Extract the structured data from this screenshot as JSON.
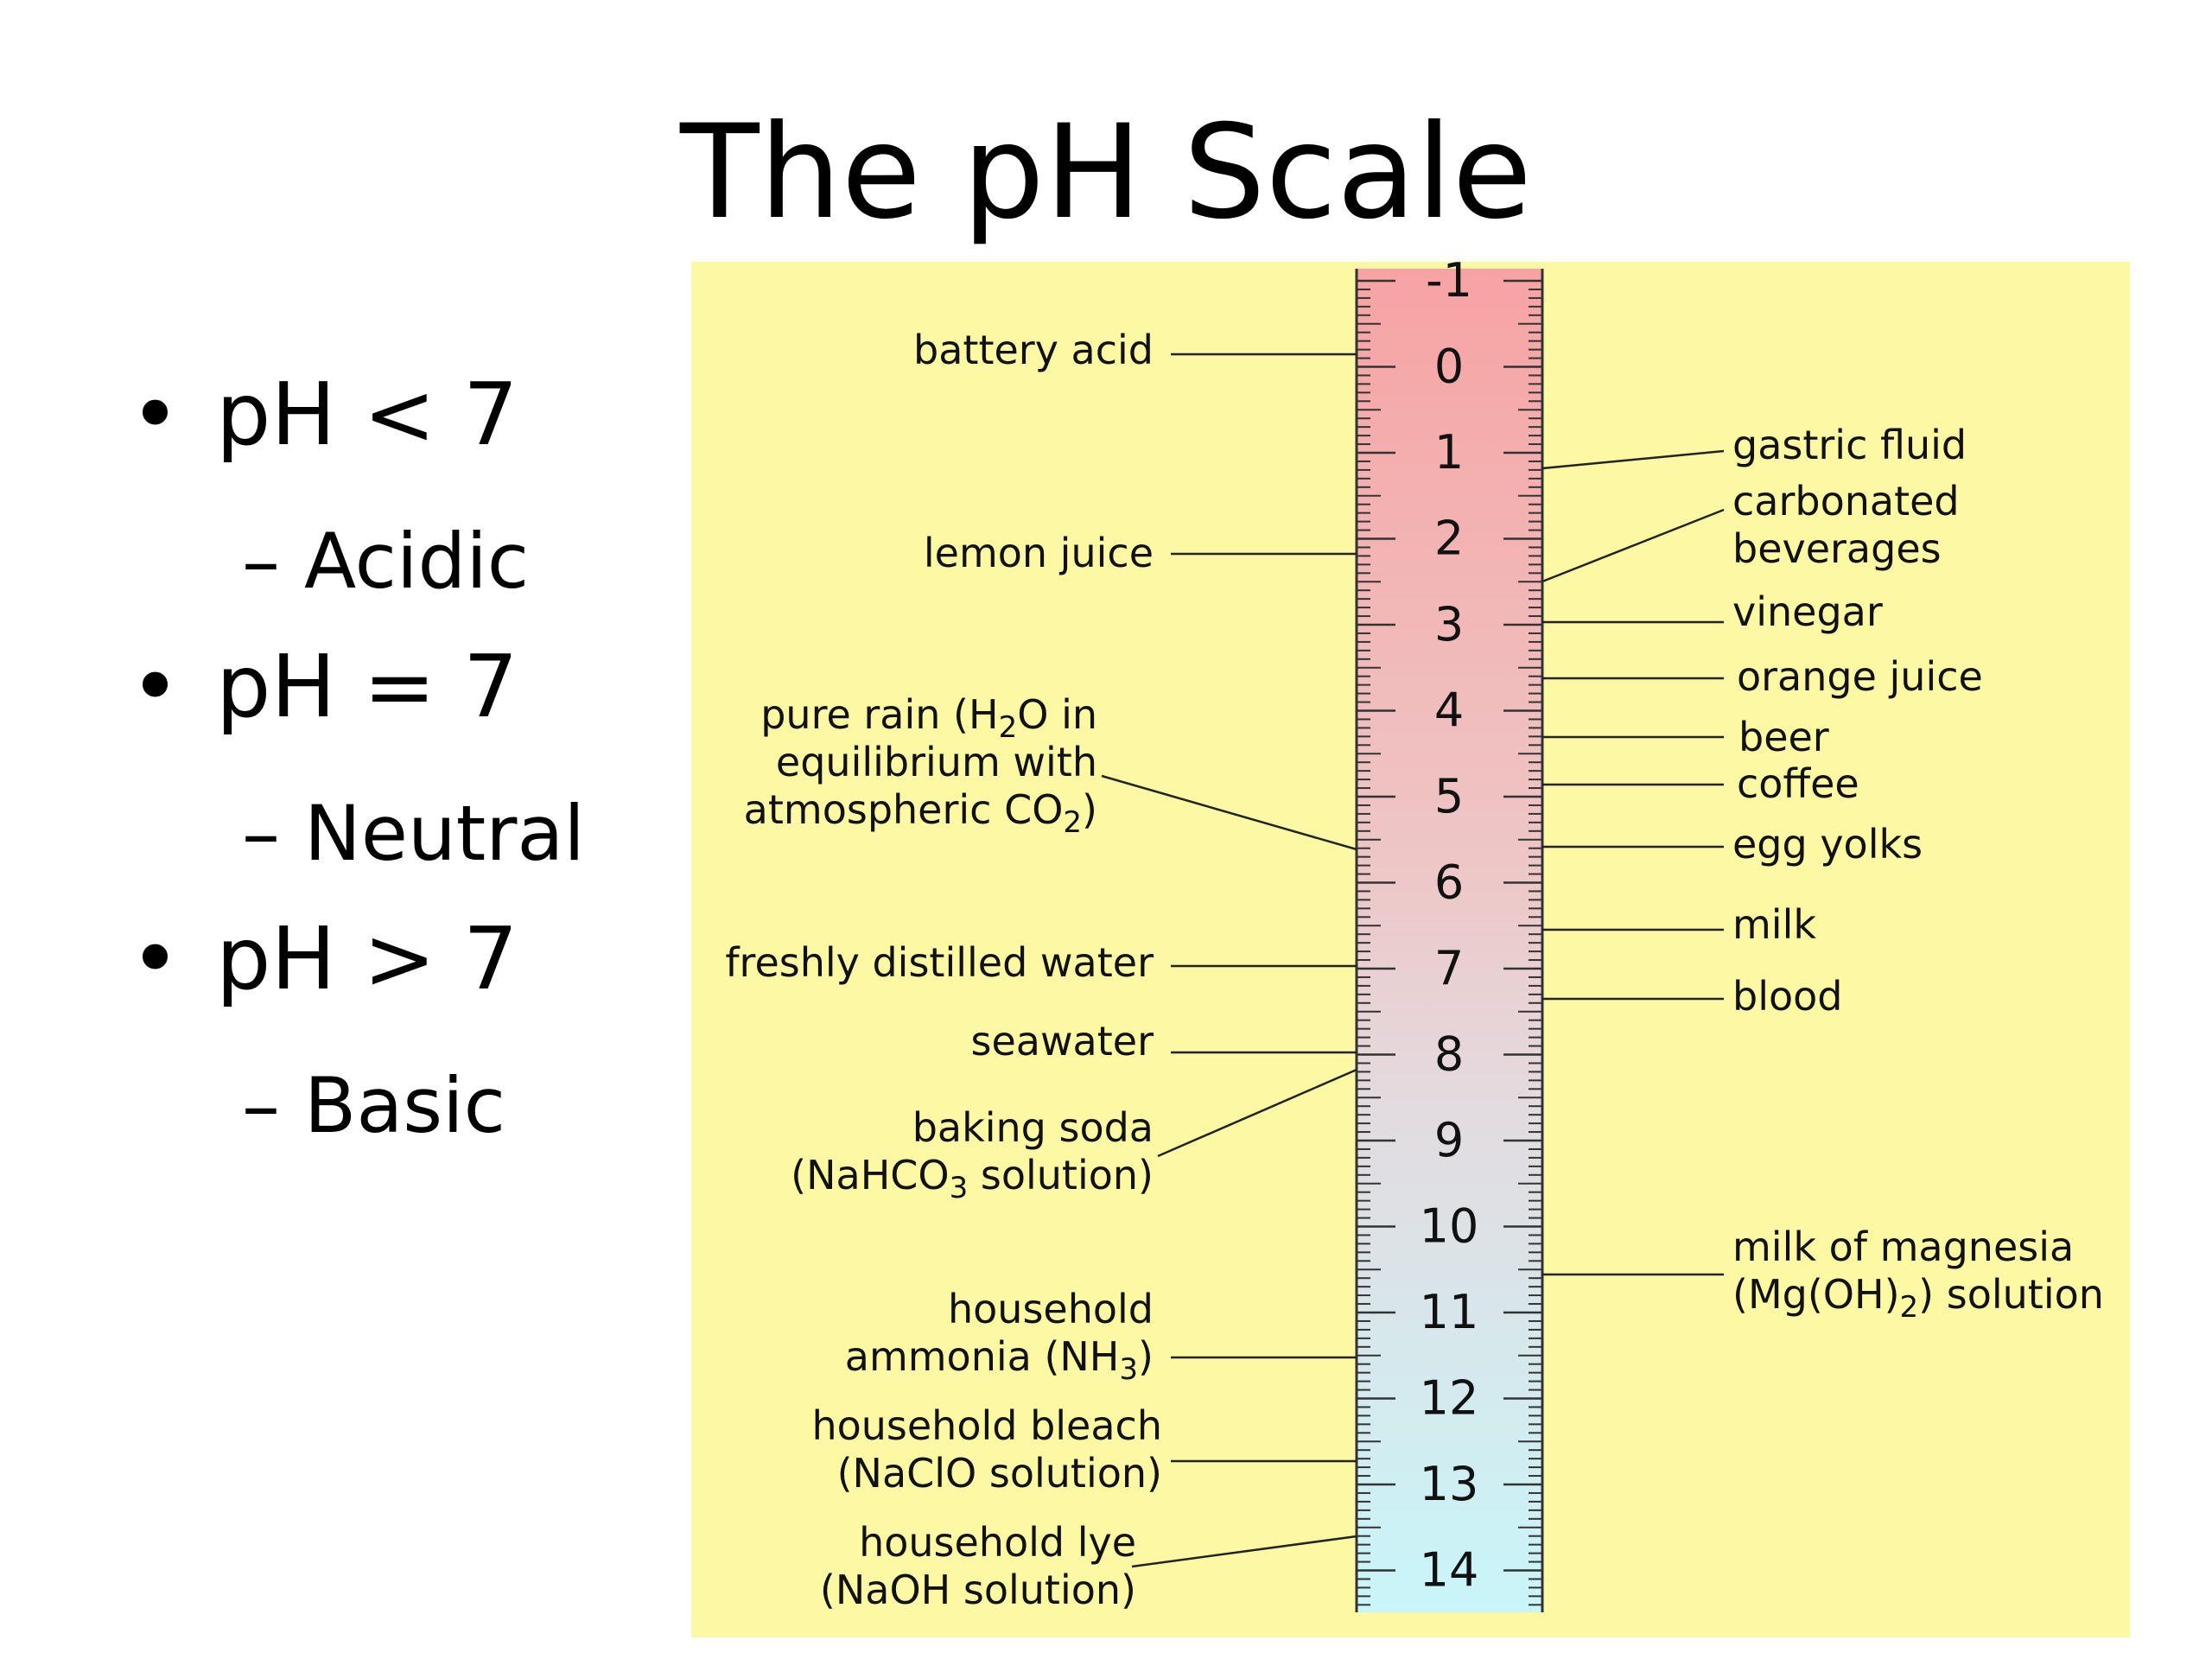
{
  "title": "The pH Scale",
  "bullets": [
    {
      "text": "pH < 7",
      "sub": "Acidic"
    },
    {
      "text": "pH = 7",
      "sub": "Neutral"
    },
    {
      "text": "pH > 7",
      "sub": "Basic"
    }
  ],
  "colors": {
    "panel_bg": "#fcf8a4",
    "acid_top": "#f7a3a3",
    "neutral_mid": "#e3dbdf",
    "base_bottom": "#c8f6fa"
  },
  "scale": {
    "tick_labels": [
      "-1",
      "0",
      "1",
      "2",
      "3",
      "4",
      "5",
      "6",
      "7",
      "8",
      "9",
      "10",
      "11",
      "12",
      "13",
      "14"
    ]
  },
  "left_labels": {
    "battery_acid": "battery acid",
    "lemon_juice": "lemon juice",
    "pure_rain_1a": "pure rain (H",
    "pure_rain_1sub": "2",
    "pure_rain_1b": "O in",
    "pure_rain_2": "equilibrium with",
    "pure_rain_3a": "atmospheric CO",
    "pure_rain_3sub": "2",
    "pure_rain_3b": ")",
    "distilled_water": "freshly distilled water",
    "seawater": "seawater",
    "baking_soda_1": "baking soda",
    "baking_soda_2a": "(NaHCO",
    "baking_soda_2sub": "3",
    "baking_soda_2b": " solution)",
    "ammonia_1": "household",
    "ammonia_2a": "ammonia (NH",
    "ammonia_2sub": "3",
    "ammonia_2b": ")",
    "bleach_1": "household bleach",
    "bleach_2": "(NaClO solution)",
    "lye_1": "household lye",
    "lye_2": "(NaOH solution)"
  },
  "right_labels": {
    "gastric_fluid": "gastric fluid",
    "carbonated_1": "carbonated",
    "carbonated_2": "beverages",
    "vinegar": "vinegar",
    "orange_juice": "orange juice",
    "beer": "beer",
    "coffee": "coffee",
    "egg_yolks": "egg yolks",
    "milk": "milk",
    "blood": "blood",
    "magnesia_1": "milk of magnesia",
    "magnesia_2a": "(Mg(OH)",
    "magnesia_2sub": "2",
    "magnesia_2b": ") solution"
  }
}
